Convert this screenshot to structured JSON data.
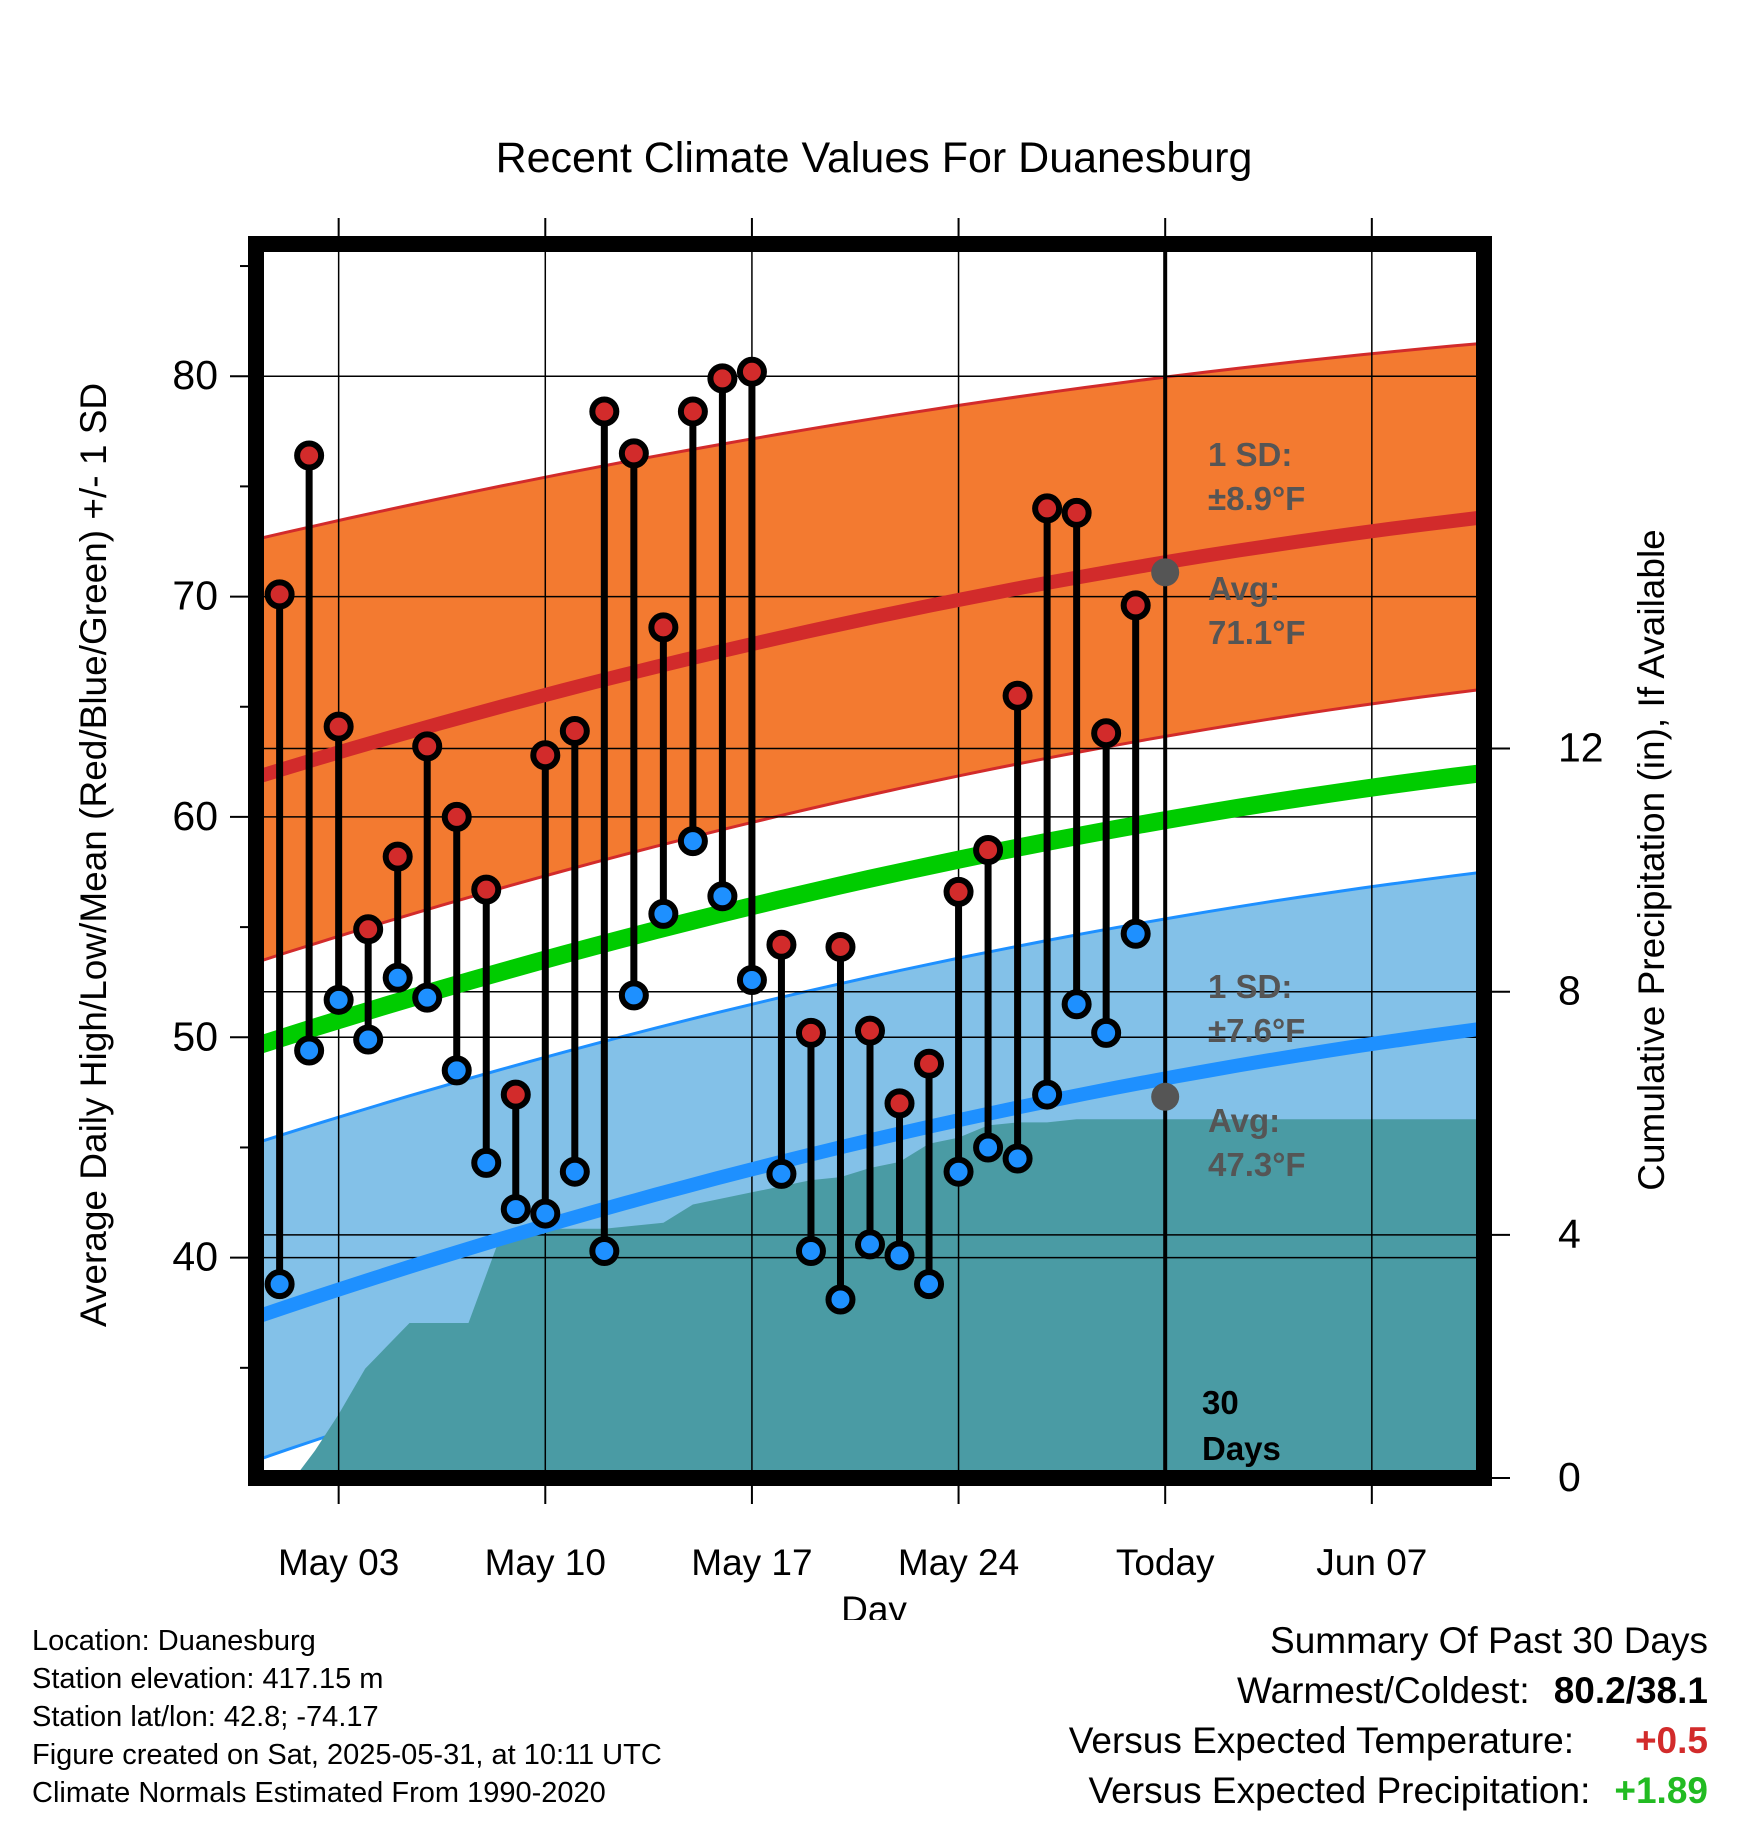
{
  "chart_data": {
    "type": "line",
    "title": "Recent Climate Values For Duanesburg",
    "xlabel": "Day",
    "ylabel": "Average Daily High/Low/Mean (Red/Blue/Green) +/- 1 SD",
    "y2label": "Cumulative Precipitation (in), If Available",
    "ylim": [
      30,
      86
    ],
    "y2lim": [
      0,
      20.3
    ],
    "xlim": [
      -0.8,
      40.8
    ],
    "x_ticks": [
      {
        "day": 2,
        "label": "May 03"
      },
      {
        "day": 9,
        "label": "May 10"
      },
      {
        "day": 16,
        "label": "May 17"
      },
      {
        "day": 23,
        "label": "May 24"
      },
      {
        "day": 30,
        "label": "Today"
      },
      {
        "day": 37,
        "label": "Jun 07"
      }
    ],
    "y_ticks": [
      40,
      50,
      60,
      70,
      80
    ],
    "y2_ticks": [
      0,
      4,
      8,
      12
    ],
    "today_day": 30,
    "normals": {
      "days": [
        -0.8,
        40.8
      ],
      "high_avg": [
        61.8,
        73.6
      ],
      "high_upper": [
        72.6,
        81.5
      ],
      "high_lower": [
        53.4,
        65.8
      ],
      "mean_avg": [
        49.6,
        62.0
      ],
      "low_avg": [
        37.3,
        50.4
      ],
      "low_upper": [
        45.2,
        57.5
      ],
      "low_lower": [
        30.8,
        44.1
      ]
    },
    "daily": {
      "days": [
        0,
        1,
        2,
        3,
        4,
        5,
        6,
        7,
        8,
        9,
        10,
        11,
        12,
        13,
        14,
        15,
        16,
        17,
        18,
        19,
        20,
        21,
        22,
        23,
        24,
        25,
        26,
        27,
        28,
        29
      ],
      "highs": [
        70.1,
        76.4,
        64.1,
        54.9,
        58.2,
        63.2,
        60.0,
        56.7,
        47.4,
        62.8,
        63.9,
        78.4,
        76.5,
        68.6,
        78.4,
        79.9,
        80.2,
        54.2,
        50.2,
        54.1,
        50.3,
        47.0,
        48.8,
        56.6,
        58.5,
        65.5,
        74.0,
        73.8,
        63.8,
        69.6
      ],
      "lows": [
        38.8,
        49.4,
        51.7,
        49.9,
        52.7,
        51.8,
        48.5,
        44.3,
        42.2,
        42.0,
        43.9,
        40.3,
        51.9,
        55.6,
        58.9,
        56.4,
        52.6,
        43.8,
        40.3,
        38.1,
        40.6,
        40.1,
        38.8,
        43.9,
        45.0,
        44.5,
        47.4,
        51.5,
        50.2,
        54.7
      ]
    },
    "precipitation": {
      "days": [
        -0.8,
        0.5,
        1.2,
        2.0,
        2.9,
        3.6,
        4.4,
        5.4,
        6.4,
        7.5,
        8.2,
        9.0,
        10.0,
        11.0,
        12.0,
        13.0,
        14.0,
        15.0,
        16.0,
        17.0,
        18.0,
        19.0,
        20.0,
        21.0,
        22.0,
        23.0,
        24.0,
        25.0,
        26.0,
        27.0,
        28.0,
        29.0,
        30.0,
        40.8
      ],
      "values": [
        0,
        0,
        0.45,
        1.05,
        1.8,
        2.15,
        2.55,
        2.55,
        2.55,
        4.0,
        4.1,
        4.1,
        4.1,
        4.1,
        4.15,
        4.2,
        4.5,
        4.6,
        4.7,
        4.8,
        4.9,
        4.95,
        5.1,
        5.2,
        5.5,
        5.6,
        5.8,
        5.85,
        5.85,
        5.9,
        5.9,
        5.9,
        5.9,
        5.9
      ]
    },
    "annotations": [
      {
        "text": "1 SD:",
        "sub": "±8.9°F"
      },
      {
        "text": "Avg:",
        "sub": "71.1°F",
        "value": 71.1
      },
      {
        "text": "1 SD:",
        "sub": "±7.6°F"
      },
      {
        "text": "Avg:",
        "sub": "47.3°F",
        "value": 47.3
      },
      {
        "text": "30",
        "sub": "Days"
      }
    ],
    "colors": {
      "high_band": "#f37a30",
      "high_line": "#d22b2b",
      "mean_line": "#00cc00",
      "low_band": "#83c1e8",
      "low_line": "#1e90ff",
      "precip": "#4a9ba4",
      "high_dot": "#d22b2b",
      "low_dot": "#1e90ff",
      "annotation": "#555555"
    }
  },
  "info": {
    "location": "Location: Duanesburg",
    "elevation": "Station elevation: 417.15 m",
    "latlon": "Station lat/lon: 42.8; -74.17",
    "created": "Figure created on Sat, 2025-05-31, at 10:11 UTC",
    "normals": "Climate Normals Estimated From 1990-2020"
  },
  "summary": {
    "title": "Summary Of Past 30 Days",
    "warmest_label": "Warmest/Coldest:",
    "warmest_value": "80.2/38.1",
    "temp_label": "Versus Expected Temperature:",
    "temp_value": "+0.5",
    "temp_color": "#d22b2b",
    "precip_label": "Versus Expected Precipitation:",
    "precip_value": "+1.89",
    "precip_color": "#22bb22"
  }
}
